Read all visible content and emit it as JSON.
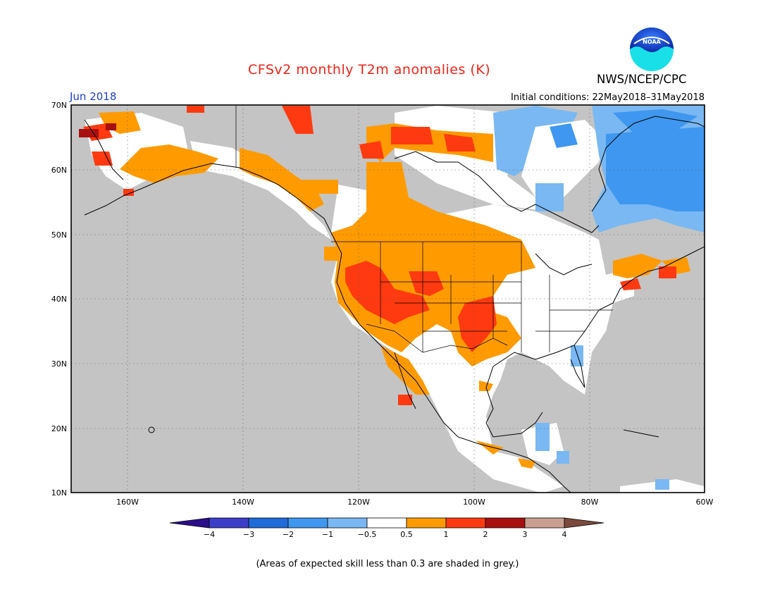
{
  "header": {
    "title": "CFSv2 monthly T2m anomalies (K)",
    "organization": "NWS/NCEP/CPC",
    "logo_text": "NOAA",
    "forecast_month": "Jun 2018",
    "initial_conditions": "Initial conditions: 22May2018–31May2018"
  },
  "map": {
    "lat_labels": [
      "70N",
      "60N",
      "50N",
      "40N",
      "30N",
      "20N",
      "10N"
    ],
    "lon_labels": [
      "160W",
      "140W",
      "120W",
      "100W",
      "80W",
      "60W"
    ],
    "land_no_skill_color": "#c4c4c4",
    "ocean_color": "#c4c4c4"
  },
  "colorbar": {
    "tick_labels": [
      "−4",
      "−3",
      "−2",
      "−1",
      "−0.5",
      "0.5",
      "1",
      "2",
      "3",
      "4"
    ],
    "colors": [
      "#2a0f8c",
      "#3d3ec8",
      "#1f6bd8",
      "#3f97ef",
      "#79b8f2",
      "#ffffff",
      "#ff9b00",
      "#ff3a10",
      "#a81010",
      "#c9a090",
      "#7a4a3c"
    ]
  },
  "footnote": "(Areas of expected skill less than 0.3 are shaded in grey.)"
}
